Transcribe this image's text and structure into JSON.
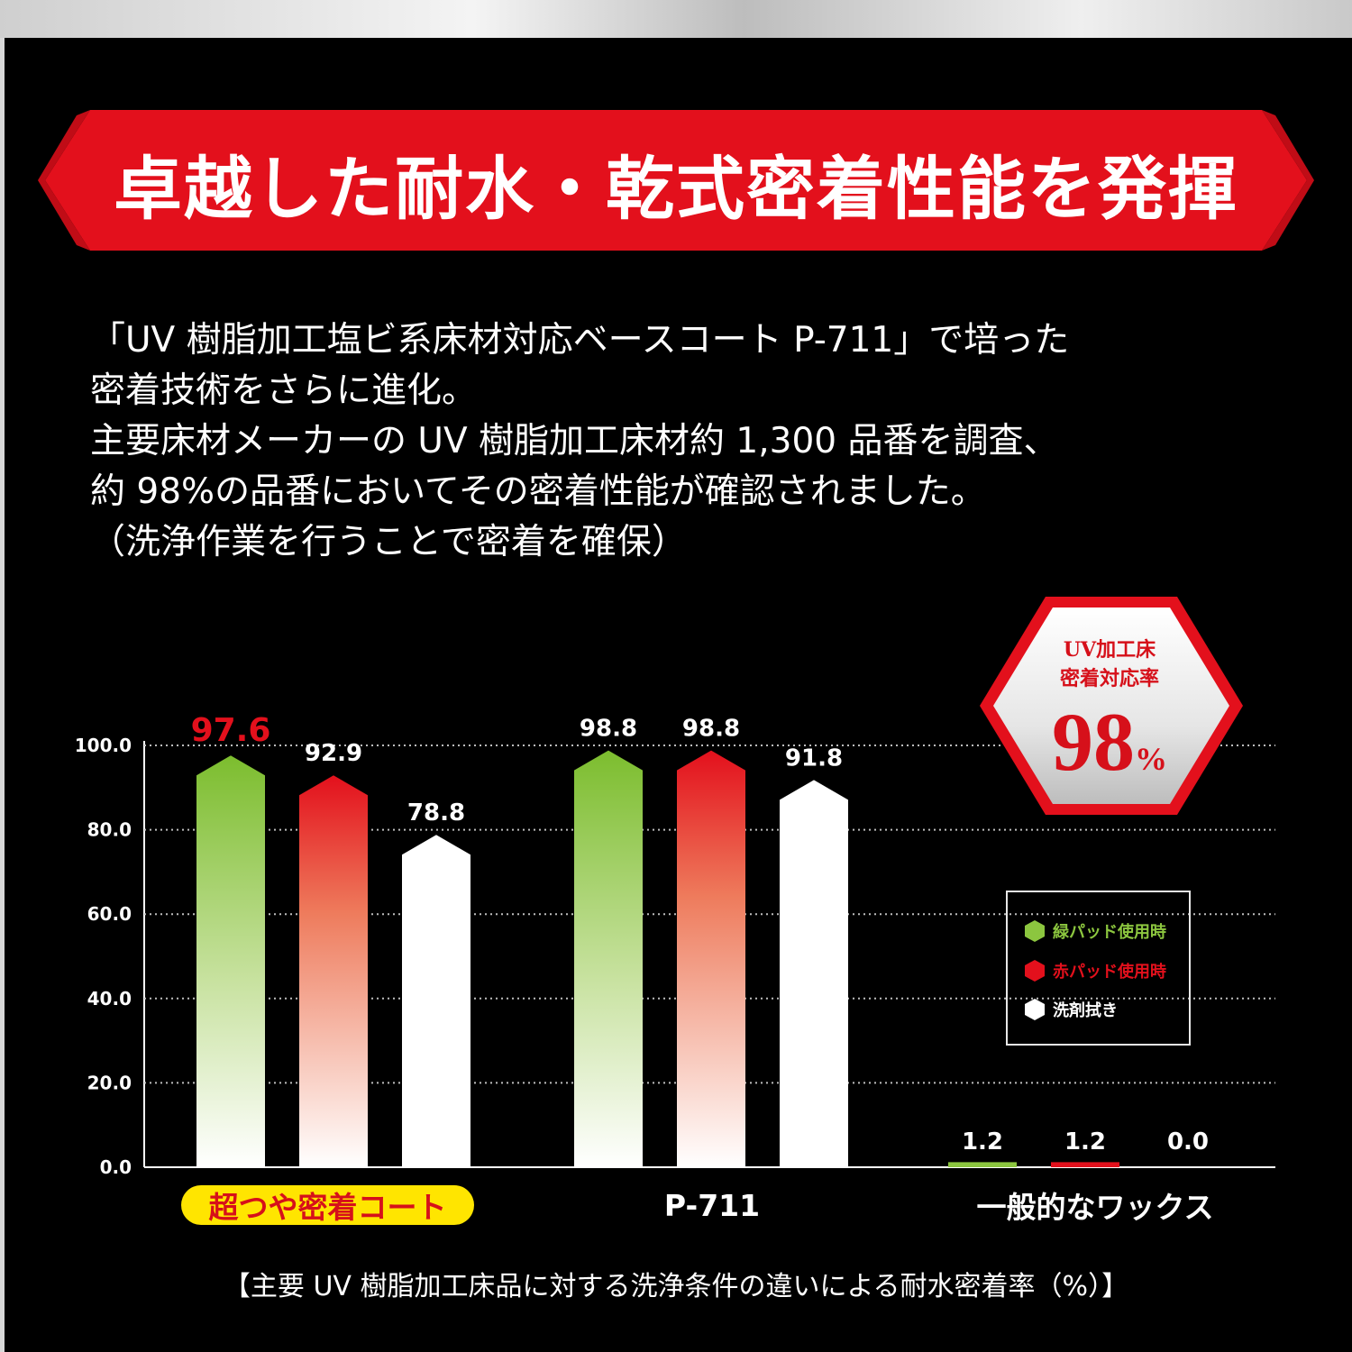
{
  "banner": {
    "title": "卓越した耐水・乾式密着性能を発揮",
    "color": "#e3101c"
  },
  "intro": {
    "lines": [
      "「UV 樹脂加工塩ビ系床材対応ベースコート P-711」で培った",
      "密着技術をさらに進化。",
      "主要床材メーカーの UV 樹脂加工床材約 1,300 品番を調査、",
      "約 98%の品番においてその密着性能が確認されました。",
      "（洗浄作業を行うことで密着を確保）"
    ]
  },
  "badge": {
    "line1": "UV加工床",
    "line2": "密着対応率",
    "value": "98",
    "unit": "%",
    "color": "#d6101a"
  },
  "legend": {
    "items": [
      {
        "label": "緑パッド使用時",
        "icon": "green-hexagon-icon",
        "color": "#8cc63f"
      },
      {
        "label": "赤パッド使用時",
        "icon": "red-hexagon-icon",
        "color": "#e3101c"
      },
      {
        "label": "洗剤拭き",
        "icon": "white-hexagon-icon",
        "color": "#ffffff"
      }
    ]
  },
  "chart_data": {
    "type": "bar",
    "categories": [
      "超つや密着コート",
      "P-711",
      "一般的なワックス"
    ],
    "series": [
      {
        "name": "緑パッド使用時",
        "values": [
          97.6,
          98.8,
          1.2
        ],
        "color": "#8cc63f"
      },
      {
        "name": "赤パッド使用時",
        "values": [
          92.9,
          98.8,
          1.2
        ],
        "color": "#e3101c"
      },
      {
        "name": "洗剤拭き",
        "values": [
          78.8,
          91.8,
          0.0
        ],
        "color": "#ffffff"
      }
    ],
    "value_labels": [
      [
        "97.6",
        "98.8",
        "1.2"
      ],
      [
        "92.9",
        "98.8",
        "1.2"
      ],
      [
        "78.8",
        "91.8",
        "0.0"
      ]
    ],
    "highlight_label": "97.6",
    "highlight_color": "#e3101c",
    "yticks": [
      "100.0",
      "80.0",
      "60.0",
      "40.0",
      "20.0",
      "0.0"
    ],
    "ylim": [
      0,
      100
    ],
    "grid": true,
    "legend_position": "right",
    "caption": "【主要 UV 樹脂加工床品に対する洗浄条件の違いによる耐水密着率（%）】"
  }
}
